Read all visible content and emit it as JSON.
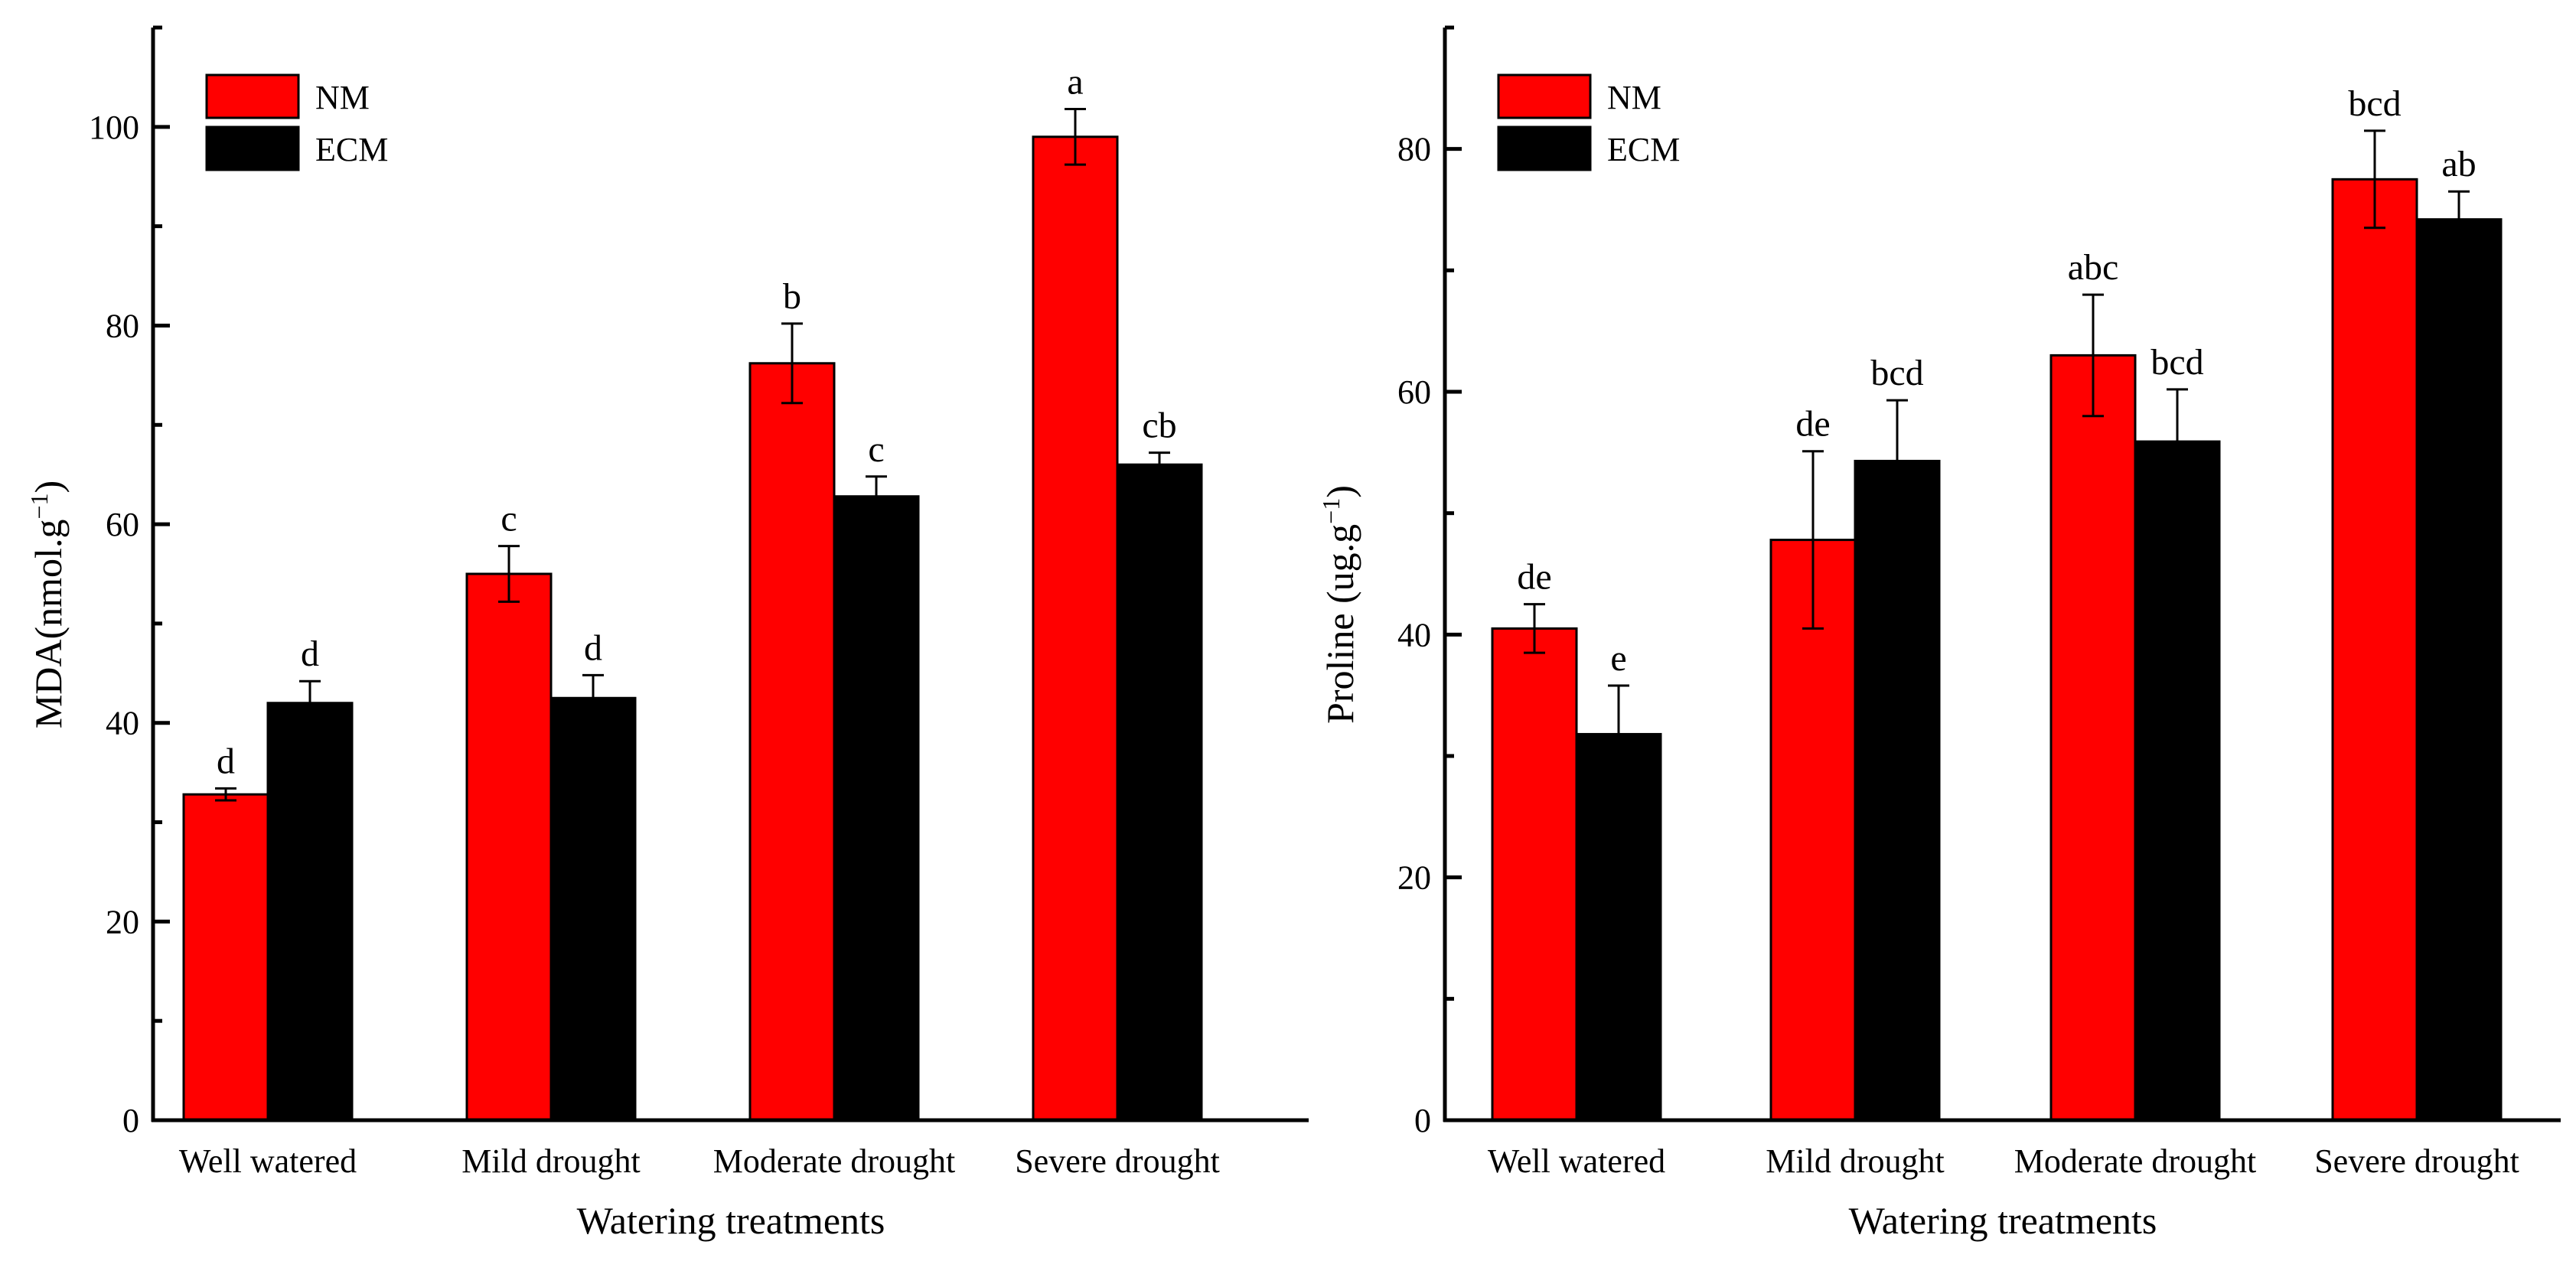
{
  "chart_data": [
    {
      "type": "bar",
      "xlabel": "Watering treatments",
      "ylabel_main": "MDA(nmol.g",
      "ylabel_sup": "−1",
      "ylabel_tail": ")",
      "ylim": [
        0,
        110
      ],
      "yticks": [
        0,
        20,
        40,
        60,
        80,
        100
      ],
      "tick_labels": [
        "0",
        "20",
        "40",
        "60",
        "80",
        "100"
      ],
      "categories": [
        "Well watered",
        "Mild drought",
        "Moderate drought",
        "Severe drought"
      ],
      "legend_position": "top-left",
      "series": [
        {
          "name": "NM",
          "color": "#ff0000",
          "values": [
            32.8,
            55.0,
            76.2,
            99.0
          ],
          "errors": [
            0.6,
            2.8,
            4.0,
            2.8
          ],
          "labels": [
            "d",
            "c",
            "b",
            "a"
          ]
        },
        {
          "name": "ECM",
          "color": "#000000",
          "values": [
            42.0,
            42.5,
            62.8,
            66.0
          ],
          "errors": [
            2.2,
            2.3,
            2.0,
            1.2
          ],
          "labels": [
            "d",
            "d",
            "c",
            "cb"
          ]
        }
      ]
    },
    {
      "type": "bar",
      "xlabel": "Watering treatments",
      "ylabel_main": "Proline (ug.g",
      "ylabel_sup": "−1",
      "ylabel_tail": ")",
      "ylim": [
        0,
        90
      ],
      "yticks": [
        0,
        20,
        40,
        60,
        80
      ],
      "tick_labels": [
        "0",
        "20",
        "40",
        "60",
        "80"
      ],
      "categories": [
        "Well watered",
        "Mild drought",
        "Moderate drought",
        "Severe drought"
      ],
      "legend_position": "top-left",
      "series": [
        {
          "name": "NM",
          "color": "#ff0000",
          "values": [
            40.5,
            47.8,
            63.0,
            77.5
          ],
          "errors": [
            2.0,
            7.3,
            5.0,
            4.0
          ],
          "labels": [
            "de",
            "de",
            "abc",
            "bcd"
          ]
        },
        {
          "name": "ECM",
          "color": "#000000",
          "values": [
            31.8,
            54.3,
            55.9,
            74.2
          ],
          "errors": [
            4.0,
            5.0,
            4.3,
            2.3
          ],
          "labels": [
            "e",
            "bcd",
            "bcd",
            "ab"
          ]
        }
      ]
    }
  ]
}
